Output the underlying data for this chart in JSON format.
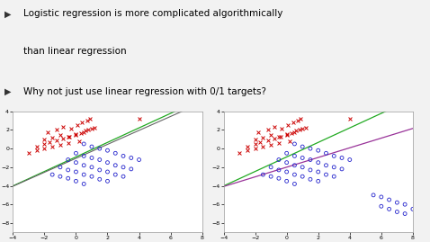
{
  "title_line1": "Logistic regression is more complicated algorithmically",
  "title_line2": "than linear regression",
  "bullet2": "Why not just use linear regression with 0/1 targets?",
  "bg_color": "#f2f2f2",
  "xlim": [
    -4,
    8
  ],
  "ylim": [
    -9,
    4
  ],
  "xticks": [
    -4,
    -2,
    0,
    2,
    4,
    6,
    8
  ],
  "yticks": [
    -8,
    -6,
    -4,
    -2,
    0,
    2,
    4
  ],
  "red_x": [
    -1.8,
    -1.2,
    -0.8,
    -0.3,
    0.1,
    0.4,
    0.7,
    0.9,
    -2.0,
    -1.5,
    -1.0,
    -0.5,
    0.0,
    0.5,
    0.8,
    1.2,
    -2.5,
    -2.0,
    -1.7,
    -1.2,
    -0.8,
    -0.4,
    0.0,
    0.3,
    0.6,
    1.0,
    -3.0,
    -2.5,
    -2.0,
    -1.5,
    -1.0,
    -0.5,
    0.2,
    4.0
  ],
  "red_y": [
    1.8,
    2.0,
    2.3,
    2.1,
    2.5,
    2.8,
    3.0,
    3.2,
    1.0,
    1.2,
    1.5,
    1.3,
    1.6,
    1.8,
    2.0,
    2.2,
    0.2,
    0.5,
    0.7,
    0.9,
    1.1,
    1.3,
    1.5,
    1.7,
    1.9,
    2.1,
    -0.5,
    -0.2,
    0.0,
    0.2,
    0.4,
    0.6,
    0.8,
    3.2
  ],
  "blue_x": [
    0.5,
    1.0,
    1.5,
    2.0,
    2.5,
    3.0,
    3.5,
    4.0,
    0.0,
    0.5,
    1.0,
    1.5,
    2.0,
    2.5,
    3.0,
    3.5,
    -0.5,
    0.0,
    0.5,
    1.0,
    1.5,
    2.0,
    2.5,
    3.0,
    -1.0,
    -0.5,
    0.0,
    0.5,
    1.0,
    1.5,
    2.0,
    -1.5,
    -1.0,
    -0.5,
    0.0,
    0.5
  ],
  "blue_y": [
    0.5,
    0.2,
    0.0,
    -0.2,
    -0.5,
    -0.8,
    -1.0,
    -1.2,
    -0.5,
    -0.8,
    -1.0,
    -1.2,
    -1.5,
    -1.8,
    -2.0,
    -2.2,
    -1.2,
    -1.5,
    -1.8,
    -2.0,
    -2.3,
    -2.5,
    -2.8,
    -3.0,
    -2.0,
    -2.3,
    -2.5,
    -2.8,
    -3.0,
    -3.3,
    -3.5,
    -2.8,
    -3.0,
    -3.2,
    -3.5,
    -3.8
  ],
  "blue2_extra_x": [
    5.5,
    6.0,
    6.5,
    7.0,
    7.5,
    6.0,
    6.5,
    7.0,
    7.5,
    8.0
  ],
  "blue2_extra_y": [
    -5.0,
    -5.2,
    -5.5,
    -5.8,
    -6.0,
    -6.2,
    -6.5,
    -6.8,
    -7.0,
    -6.5
  ],
  "line1_color": "#22aa22",
  "line2_color_plot1": "#666666",
  "line2_color_plot2": "#993399",
  "red_color": "#cc0000",
  "blue_color": "#2222cc",
  "font_size_text": 7.5,
  "tick_fontsize": 4.5,
  "green_slope": 0.78,
  "green_intercept": -0.9,
  "gray_slope": 0.75,
  "gray_intercept": -1.05,
  "purple_slope": 0.52,
  "purple_intercept": -2.0
}
